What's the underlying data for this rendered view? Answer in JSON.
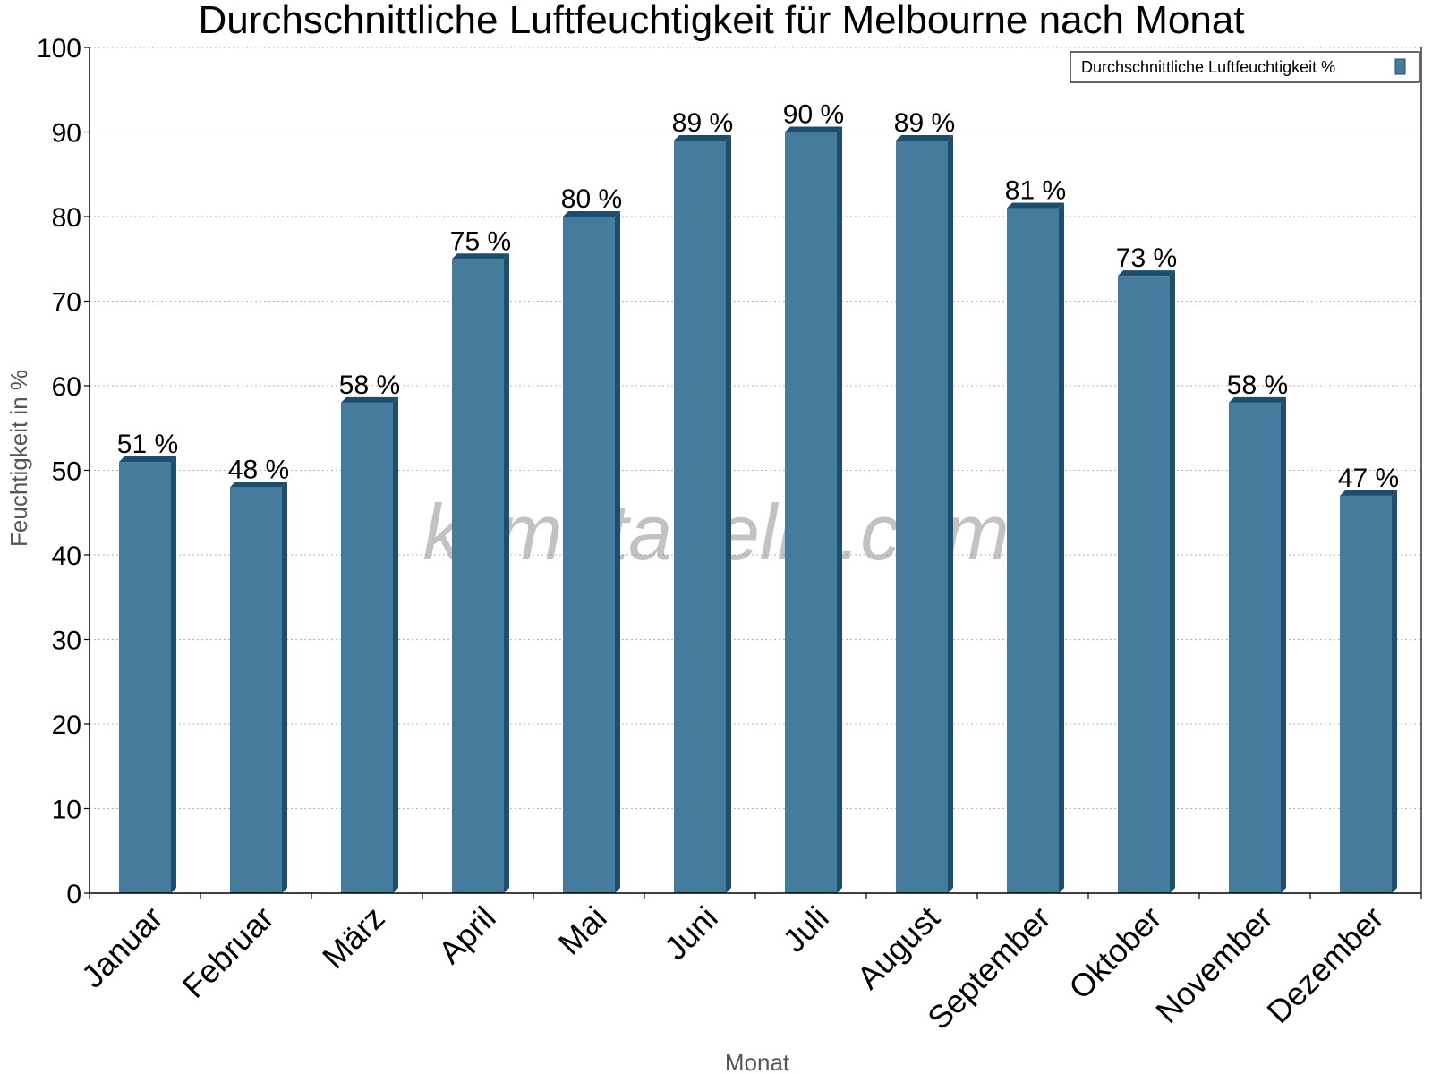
{
  "chart_data": {
    "type": "bar",
    "title": "Durchschnittliche Luftfeuchtigkeit für Melbourne nach Monat",
    "xlabel": "Monat",
    "ylabel": "Feuchtigkeit in %",
    "categories": [
      "Januar",
      "Februar",
      "März",
      "April",
      "Mai",
      "Juni",
      "Juli",
      "August",
      "September",
      "Oktober",
      "November",
      "Dezember"
    ],
    "series": [
      {
        "name": "Durchschnittliche Luftfeuchtigkeit %",
        "values": [
          51,
          48,
          58,
          75,
          80,
          89,
          90,
          89,
          81,
          73,
          58,
          47
        ],
        "labels": [
          "51 %",
          "48 %",
          "58 %",
          "75 %",
          "80 %",
          "89 %",
          "90 %",
          "89 %",
          "81 %",
          "73 %",
          "58 %",
          "47 %"
        ],
        "color": "#457b9d",
        "shade_color": "#1d4e6e"
      }
    ],
    "ylim": [
      0,
      100
    ],
    "yticks": [
      0,
      10,
      20,
      30,
      40,
      50,
      60,
      70,
      80,
      90,
      100
    ],
    "grid": true,
    "legend_position": "top-right",
    "watermark": "klimatabelle.com"
  }
}
